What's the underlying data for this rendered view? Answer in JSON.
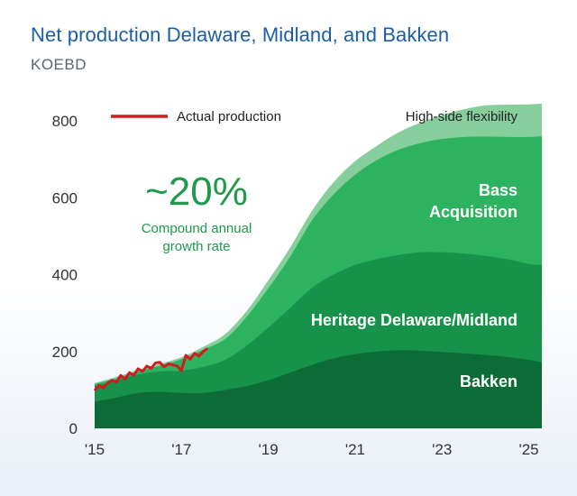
{
  "title": "Net production Delaware, Midland, and Bakken",
  "subtitle": "KOEBD",
  "chart_data": {
    "type": "area",
    "ylim": [
      0,
      800
    ],
    "y_ticks": [
      0,
      200,
      400,
      600,
      800
    ],
    "xlim": [
      2015,
      2025.3
    ],
    "x_ticks": [
      {
        "value": 2015,
        "label": "'15"
      },
      {
        "value": 2017,
        "label": "'17"
      },
      {
        "value": 2019,
        "label": "'19"
      },
      {
        "value": 2021,
        "label": "'21"
      },
      {
        "value": 2023,
        "label": "'23"
      },
      {
        "value": 2025,
        "label": "'25"
      }
    ],
    "x": [
      2015,
      2015.5,
      2016,
      2016.5,
      2017,
      2017.5,
      2018,
      2018.5,
      2019,
      2019.5,
      2020,
      2020.5,
      2021,
      2021.5,
      2022,
      2022.5,
      2023,
      2023.5,
      2024,
      2024.5,
      2025,
      2025.3
    ],
    "series": [
      {
        "name": "Bakken",
        "color": "#0d6b36",
        "values": [
          70,
          80,
          92,
          95,
          92,
          92,
          100,
          110,
          125,
          145,
          165,
          182,
          193,
          200,
          203,
          202,
          199,
          195,
          191,
          186,
          178,
          172
        ]
      },
      {
        "name": "Heritage Delaware/Midland",
        "color": "#17924a",
        "values": [
          110,
          125,
          140,
          148,
          150,
          160,
          178,
          215,
          262,
          313,
          365,
          400,
          425,
          440,
          451,
          458,
          458,
          455,
          449,
          440,
          428,
          425
        ]
      },
      {
        "name": "Bass Acquisition",
        "color": "#2db25f",
        "values": [
          115,
          130,
          148,
          163,
          180,
          205,
          232,
          290,
          364,
          446,
          540,
          608,
          660,
          698,
          725,
          742,
          753,
          758,
          759,
          758,
          758,
          760
        ]
      },
      {
        "name": "High-side flexibility",
        "color": "#86cf9d",
        "values": [
          118,
          134,
          152,
          168,
          185,
          212,
          245,
          305,
          385,
          470,
          565,
          640,
          695,
          735,
          770,
          795,
          815,
          830,
          840,
          842,
          843,
          845
        ]
      }
    ],
    "actual": {
      "name": "Actual production",
      "color": "#d01c1f",
      "x": [
        2015,
        2015.1,
        2015.2,
        2015.3,
        2015.4,
        2015.5,
        2015.6,
        2015.7,
        2015.8,
        2015.9,
        2016,
        2016.1,
        2016.2,
        2016.3,
        2016.4,
        2016.5,
        2016.6,
        2016.7,
        2016.8,
        2016.9,
        2017,
        2017.1,
        2017.2,
        2017.3,
        2017.4,
        2017.5,
        2017.6
      ],
      "y": [
        98,
        112,
        105,
        118,
        125,
        120,
        138,
        128,
        145,
        138,
        155,
        148,
        162,
        156,
        170,
        172,
        160,
        168,
        165,
        162,
        150,
        190,
        180,
        195,
        188,
        200,
        208
      ]
    },
    "annotations": {
      "legend_label": "Actual production",
      "cagr_value": "~20%",
      "cagr_line1": "Compound annual",
      "cagr_line2": "growth rate",
      "label_flex": "High-side flexibility",
      "label_bass_line1": "Bass",
      "label_bass_line2": "Acquisition",
      "label_heritage": "Heritage Delaware/Midland",
      "label_bakken": "Bakken"
    }
  }
}
